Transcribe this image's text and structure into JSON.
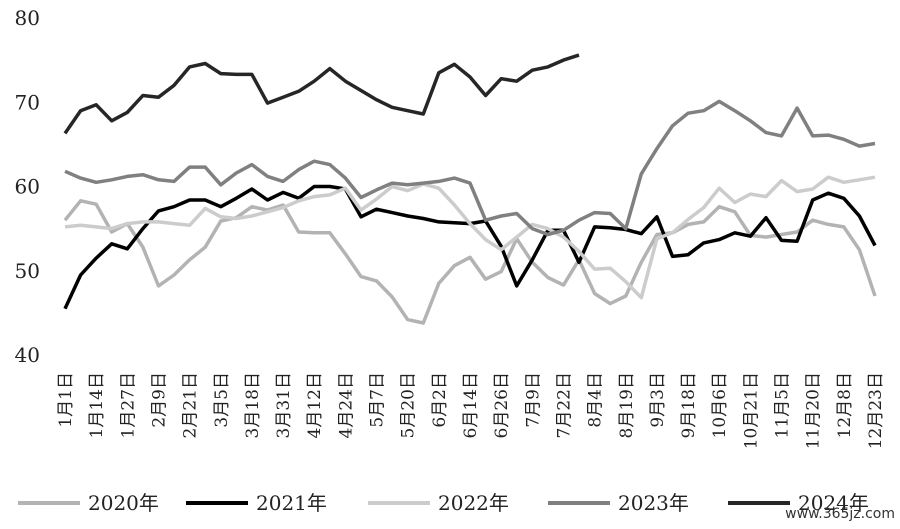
{
  "chart_data": {
    "type": "line",
    "categories": [
      "1月1日",
      null,
      "1月14日",
      null,
      "1月27日",
      null,
      "2月9日",
      null,
      "2月21日",
      null,
      "3月5日",
      null,
      "3月18日",
      null,
      "3月31日",
      null,
      "4月12日",
      null,
      "4月24日",
      null,
      "5月7日",
      null,
      "5月20日",
      null,
      "6月2日",
      null,
      "6月14日",
      null,
      "6月26日",
      null,
      "7月9日",
      null,
      "7月22日",
      null,
      "8月4日",
      null,
      "8月19日",
      null,
      "9月3日",
      null,
      "9月18日",
      null,
      "10月6日",
      null,
      "10月21日",
      null,
      "11月5日",
      null,
      "11月20日",
      null,
      "12月8日",
      null,
      "12月23日"
    ],
    "series": [
      {
        "name": "2020年",
        "color": "#b3b3b3",
        "values": [
          56,
          58.3,
          57.9,
          54.6,
          55.6,
          52.8,
          48.2,
          49.5,
          51.3,
          52.8,
          55.9,
          56.3,
          57.6,
          57.2,
          57.8,
          54.6,
          54.5,
          54.5,
          52,
          49.3,
          48.8,
          46.9,
          44.2,
          43.8,
          48.5,
          50.6,
          51.6,
          49,
          49.9,
          53.8,
          51,
          49.2,
          48.3,
          51.3,
          47.3,
          46.1,
          47,
          51,
          54.3,
          54.5,
          55.5,
          55.8,
          57.6,
          57,
          54.2,
          54,
          54.3,
          54.6,
          56,
          55.5,
          55.2,
          52.5,
          47
        ]
      },
      {
        "name": "2021年",
        "color": "#000000",
        "values": [
          45.5,
          49.5,
          51.5,
          53.2,
          52.6,
          55,
          57.1,
          57.6,
          58.4,
          58.4,
          57.6,
          58.6,
          59.7,
          58.4,
          59.3,
          58.6,
          60,
          60,
          59.7,
          56.4,
          57.3,
          56.9,
          56.5,
          56.2,
          55.8,
          55.7,
          55.6,
          55.9,
          52.9,
          48.2,
          51.3,
          54.8,
          54.8,
          51,
          55.2,
          55.1,
          54.9,
          54.4,
          56.4,
          51.7,
          51.9,
          53.3,
          53.7,
          54.5,
          54.1,
          56.3,
          53.6,
          53.5,
          58.4,
          59.2,
          58.6,
          56.5,
          53
        ]
      },
      {
        "name": "2022年",
        "color": "#cccccc",
        "values": [
          55.2,
          55.4,
          55.2,
          55,
          55.6,
          55.8,
          55.8,
          55.6,
          55.4,
          57.4,
          56.4,
          56.2,
          56.5,
          57,
          57.5,
          58.3,
          58.8,
          59,
          59.8,
          57.2,
          58.5,
          60,
          59.5,
          60.3,
          59.8,
          57.8,
          55.6,
          53.7,
          52.5,
          54,
          55.5,
          55,
          54,
          52.3,
          50.2,
          50.3,
          48.7,
          46.8,
          53.8,
          54.5,
          56.1,
          57.5,
          59.8,
          58.1,
          59.1,
          58.8,
          60.7,
          59.4,
          59.7,
          61.1,
          60.5,
          60.8,
          61.1
        ]
      },
      {
        "name": "2023年",
        "color": "#808080",
        "values": [
          61.8,
          61,
          60.5,
          60.8,
          61.2,
          61.4,
          60.8,
          60.6,
          62.3,
          62.3,
          60.2,
          61.6,
          62.6,
          61.2,
          60.6,
          62,
          63,
          62.6,
          61,
          58.7,
          59.6,
          60.4,
          60.2,
          60.4,
          60.6,
          61,
          60.4,
          56,
          56.5,
          56.8,
          55,
          54.3,
          54.8,
          56,
          56.9,
          56.8,
          55,
          61.5,
          64.5,
          67.2,
          68.7,
          69,
          70.1,
          69,
          67.8,
          66.4,
          66,
          69.3,
          66,
          66.1,
          65.6,
          64.8,
          65.1
        ]
      },
      {
        "name": "2024年",
        "color": "#262626",
        "values": [
          66.3,
          69,
          69.7,
          67.8,
          68.8,
          70.8,
          70.6,
          72,
          74.2,
          74.6,
          73.4,
          73.3,
          73.3,
          69.9,
          70.6,
          71.3,
          72.5,
          74,
          72.5,
          71.4,
          70.3,
          69.4,
          69,
          68.6,
          73.5,
          74.5,
          73,
          70.8,
          72.8,
          72.5,
          73.8,
          74.2,
          75,
          75.6,
          null,
          null,
          null,
          null,
          null,
          null,
          null,
          null,
          null,
          null,
          null,
          null,
          null,
          null,
          null,
          null,
          null,
          null,
          null
        ]
      }
    ],
    "ylim": [
      40,
      80
    ],
    "yticks": [
      40,
      50,
      60,
      70,
      80
    ],
    "watermark": "www.365jz.com"
  }
}
